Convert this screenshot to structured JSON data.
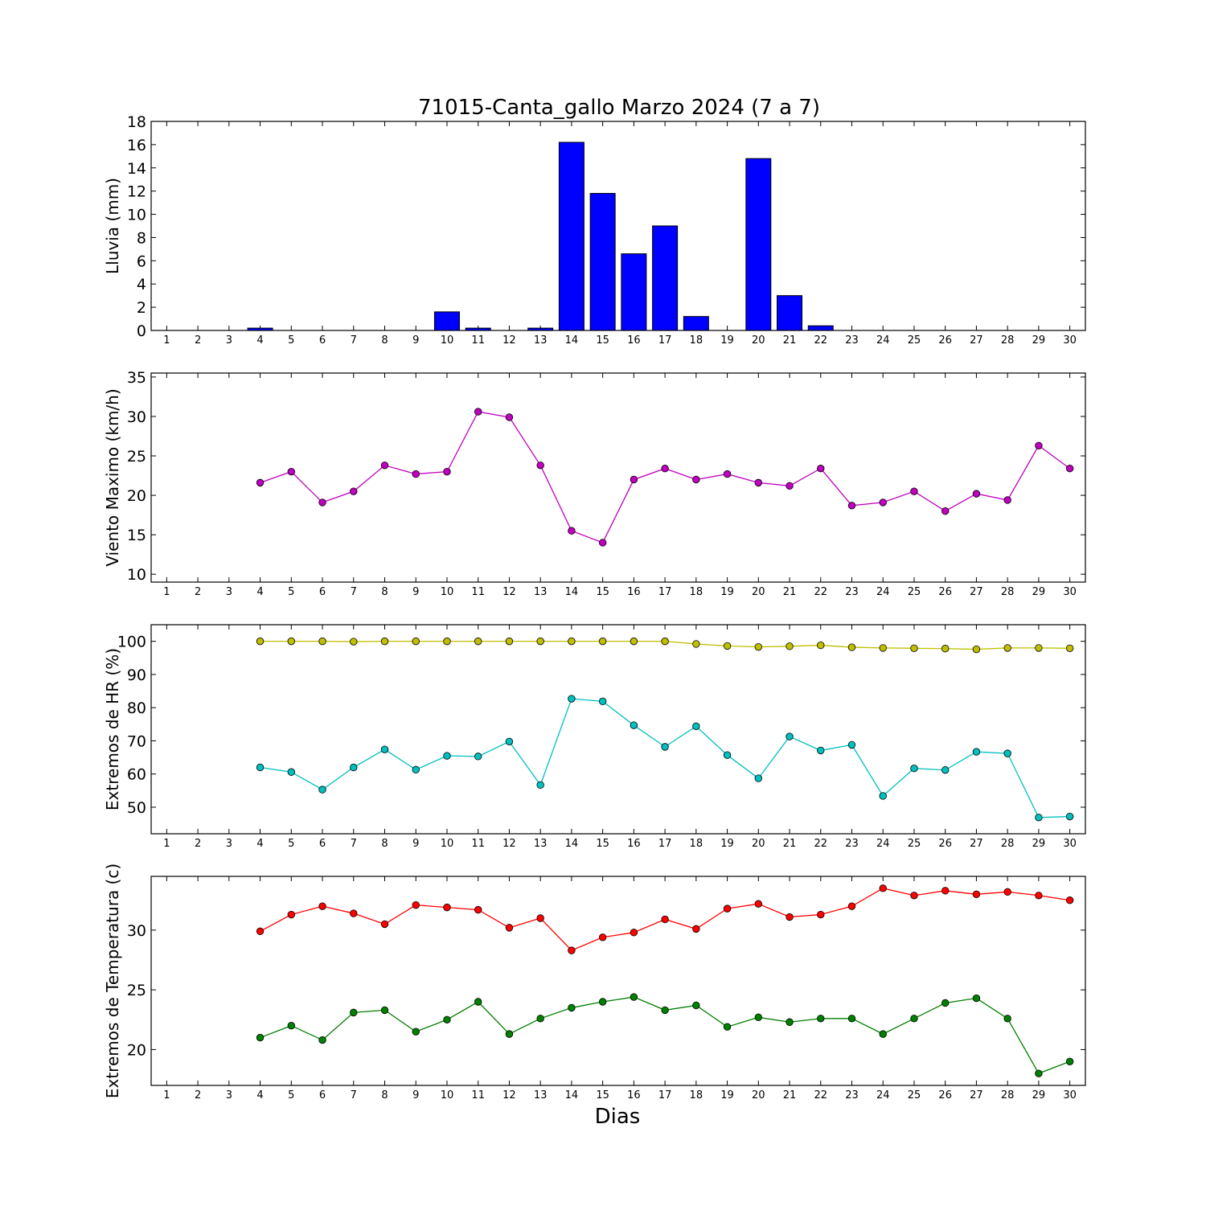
{
  "title": "71015-Canta_gallo Marzo 2024  (7 a 7)",
  "xlabel": "Dias",
  "colors": {
    "rain": "#0000ff",
    "wind": "#bf00bf",
    "hr_max": "#bfbf00",
    "hr_min": "#00bfbf",
    "temp_max": "#ff0000",
    "temp_min": "#008000"
  },
  "chart_data": [
    {
      "type": "bar",
      "ylabel": "Lluvia (mm)",
      "ylim": [
        0,
        18
      ],
      "yticks": [
        "0",
        "2",
        "4",
        "6",
        "8",
        "10",
        "12",
        "14",
        "16",
        "18"
      ],
      "xticks": [
        "1",
        "2",
        "3",
        "4",
        "5",
        "6",
        "7",
        "8",
        "9",
        "10",
        "11",
        "12",
        "13",
        "14",
        "15",
        "16",
        "17",
        "18",
        "19",
        "20",
        "21",
        "22",
        "23",
        "24",
        "25",
        "26",
        "27",
        "28",
        "29",
        "30"
      ],
      "x": [
        4,
        10,
        11,
        13,
        14,
        15,
        16,
        17,
        18,
        20,
        21,
        22
      ],
      "values": [
        0.2,
        1.6,
        0.2,
        0.2,
        16.2,
        11.8,
        6.6,
        9.0,
        1.2,
        14.8,
        3.0,
        0.4
      ],
      "color": "#0000ff"
    },
    {
      "type": "line",
      "ylabel": "Viento Maximo (km/h)",
      "ylim": [
        9,
        35.5
      ],
      "yticks": [
        "10",
        "15",
        "20",
        "25",
        "30",
        "35"
      ],
      "xticks": [
        "1",
        "2",
        "3",
        "4",
        "5",
        "6",
        "7",
        "8",
        "9",
        "10",
        "11",
        "12",
        "13",
        "14",
        "15",
        "16",
        "17",
        "18",
        "19",
        "20",
        "21",
        "22",
        "23",
        "24",
        "25",
        "26",
        "27",
        "28",
        "29",
        "30"
      ],
      "x": [
        4,
        5,
        6,
        7,
        8,
        9,
        10,
        11,
        12,
        13,
        14,
        15,
        16,
        17,
        18,
        19,
        20,
        21,
        22,
        23,
        24,
        25,
        26,
        27,
        28,
        29,
        30
      ],
      "series": [
        {
          "color": "#bf00bf",
          "values": [
            21.6,
            23.0,
            19.1,
            20.5,
            23.8,
            22.7,
            23.0,
            30.6,
            29.9,
            23.8,
            15.5,
            14.0,
            22.0,
            23.4,
            22.0,
            22.7,
            21.6,
            21.2,
            23.4,
            18.7,
            19.1,
            20.5,
            18.0,
            20.2,
            19.4,
            26.3,
            23.4
          ]
        }
      ]
    },
    {
      "type": "line",
      "ylabel": "Extremos de HR (%)",
      "ylim": [
        42,
        105
      ],
      "yticks": [
        "50",
        "60",
        "70",
        "80",
        "90",
        "100"
      ],
      "xticks": [
        "1",
        "2",
        "3",
        "4",
        "5",
        "6",
        "7",
        "8",
        "9",
        "10",
        "11",
        "12",
        "13",
        "14",
        "15",
        "16",
        "17",
        "18",
        "19",
        "20",
        "21",
        "22",
        "23",
        "24",
        "25",
        "26",
        "27",
        "28",
        "29",
        "30"
      ],
      "x": [
        4,
        5,
        6,
        7,
        8,
        9,
        10,
        11,
        12,
        13,
        14,
        15,
        16,
        17,
        18,
        19,
        20,
        21,
        22,
        23,
        24,
        25,
        26,
        27,
        28,
        29,
        30
      ],
      "series": [
        {
          "color": "#bfbf00",
          "values": [
            100,
            100,
            100,
            99.9,
            100,
            100,
            100,
            100,
            100,
            100,
            100,
            100,
            100,
            100,
            99.2,
            98.6,
            98.3,
            98.5,
            98.8,
            98.2,
            98.0,
            97.9,
            97.8,
            97.6,
            98.0,
            98.0,
            97.9
          ]
        },
        {
          "color": "#00bfbf",
          "values": [
            62.0,
            60.6,
            55.3,
            62.0,
            67.4,
            61.3,
            65.5,
            65.3,
            69.8,
            56.7,
            82.7,
            81.9,
            74.7,
            68.2,
            74.4,
            65.7,
            58.7,
            71.3,
            67.1,
            68.8,
            53.4,
            61.7,
            61.2,
            66.7,
            66.2,
            46.9,
            47.2
          ]
        }
      ]
    },
    {
      "type": "line",
      "ylabel": "Extremos de Temperatura (c)",
      "ylim": [
        17,
        34.5
      ],
      "yticks": [
        "20",
        "25",
        "30"
      ],
      "xticks": [
        "1",
        "2",
        "3",
        "4",
        "5",
        "6",
        "7",
        "8",
        "9",
        "10",
        "11",
        "12",
        "13",
        "14",
        "15",
        "16",
        "17",
        "18",
        "19",
        "20",
        "21",
        "22",
        "23",
        "24",
        "25",
        "26",
        "27",
        "28",
        "29",
        "30"
      ],
      "x": [
        4,
        5,
        6,
        7,
        8,
        9,
        10,
        11,
        12,
        13,
        14,
        15,
        16,
        17,
        18,
        19,
        20,
        21,
        22,
        23,
        24,
        25,
        26,
        27,
        28,
        29,
        30
      ],
      "series": [
        {
          "color": "#ff0000",
          "values": [
            29.9,
            31.3,
            32.0,
            31.4,
            30.5,
            32.1,
            31.9,
            31.7,
            30.2,
            31.0,
            28.3,
            29.4,
            29.8,
            30.9,
            30.1,
            31.8,
            32.2,
            31.1,
            31.3,
            32.0,
            33.5,
            32.9,
            33.3,
            33.0,
            33.2,
            32.9,
            32.5
          ]
        },
        {
          "color": "#008000",
          "values": [
            21.0,
            22.0,
            20.8,
            23.1,
            23.3,
            21.5,
            22.5,
            24.0,
            21.3,
            22.6,
            23.5,
            24.0,
            24.4,
            23.3,
            23.7,
            21.9,
            22.7,
            22.3,
            22.6,
            22.6,
            21.3,
            22.6,
            23.9,
            24.3,
            22.6,
            18.0,
            19.0
          ]
        }
      ]
    }
  ]
}
